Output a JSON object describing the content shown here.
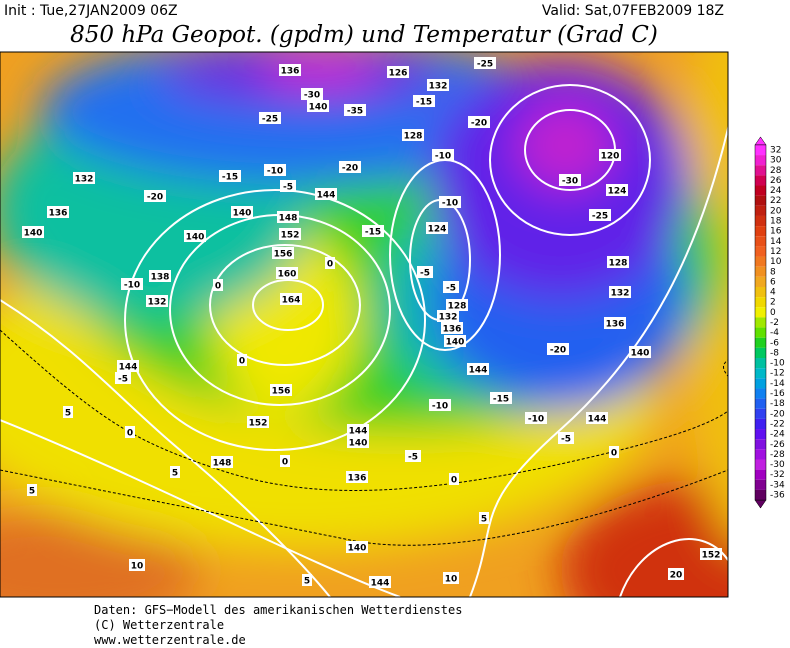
{
  "header": {
    "init": "Init : Tue,27JAN2009 06Z",
    "valid": "Valid: Sat,07FEB2009 18Z",
    "title": "850 hPa Geopot. (gpdm) und Temperatur (Grad C)"
  },
  "contours": {
    "geopotential": [
      "136",
      "126",
      "132",
      "140",
      "128",
      "120",
      "124",
      "132",
      "136",
      "140",
      "144",
      "148",
      "140",
      "140",
      "152",
      "156",
      "160",
      "164",
      "124",
      "128",
      "132",
      "136",
      "140",
      "128",
      "132",
      "136",
      "140",
      "138",
      "132",
      "144",
      "156",
      "152",
      "144",
      "140",
      "148",
      "144",
      "144",
      "136",
      "140",
      "144",
      "152"
    ],
    "temperature": [
      "-25",
      "-30",
      "-15",
      "-35",
      "-25",
      "-20",
      "-10",
      "-30",
      "-20",
      "-10",
      "-15",
      "-5",
      "-20",
      "-10",
      "-25",
      "-15",
      "0",
      "-5",
      "-5",
      "-10",
      "0",
      "-20",
      "-5",
      "0",
      "-15",
      "-10",
      "-10",
      "-5",
      "0",
      "5",
      "-5",
      "0",
      "0",
      "0",
      "5",
      "5",
      "5",
      "10",
      "5",
      "10",
      "20"
    ]
  },
  "legend": {
    "labels": [
      "32",
      "30",
      "28",
      "26",
      "24",
      "22",
      "20",
      "18",
      "16",
      "14",
      "12",
      "10",
      "8",
      "6",
      "4",
      "2",
      "0",
      "-2",
      "-4",
      "-6",
      "-8",
      "-10",
      "-12",
      "-14",
      "-16",
      "-18",
      "-20",
      "-22",
      "-24",
      "-26",
      "-28",
      "-30",
      "-32",
      "-34",
      "-36"
    ],
    "colors": [
      "#ff30ff",
      "#f020d0",
      "#e01090",
      "#d00050",
      "#c00020",
      "#b01010",
      "#c02010",
      "#d03010",
      "#e04010",
      "#e85018",
      "#f06020",
      "#f07820",
      "#f09020",
      "#f0a820",
      "#f0c010",
      "#f0d800",
      "#f0f000",
      "#a0e800",
      "#60e000",
      "#20d020",
      "#00c860",
      "#00c0a0",
      "#00b8c8",
      "#00a0e0",
      "#1080f0",
      "#2060f0",
      "#3040f0",
      "#4020f0",
      "#6010f0",
      "#8010e0",
      "#a010e0",
      "#c020e0",
      "#a000c0",
      "#800090",
      "#600060"
    ]
  },
  "footer": [
    "Daten: GFS−Modell des amerikanischen Wetterdienstes",
    "(C) Wetterzentrale",
    "www.wetterzentrale.de"
  ]
}
